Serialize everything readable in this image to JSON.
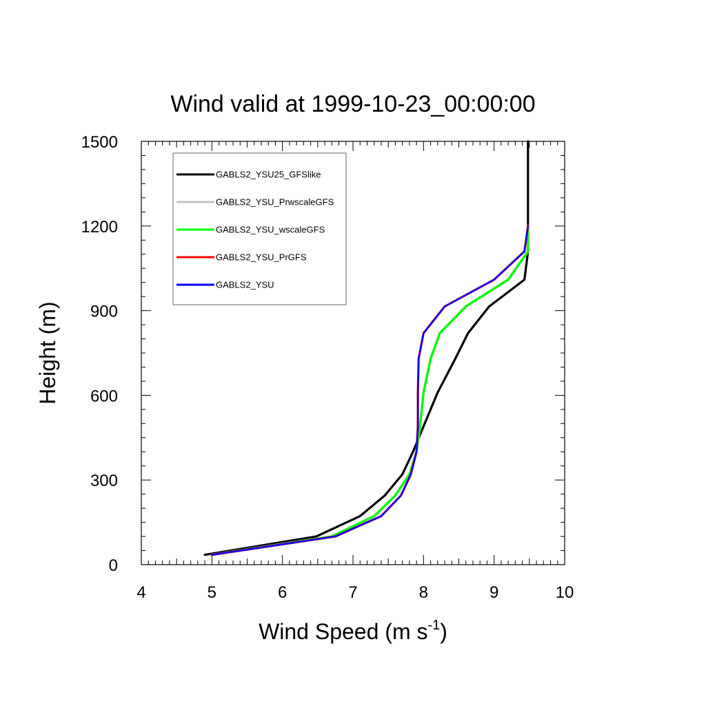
{
  "chart_data": {
    "type": "line",
    "title": "Wind valid at 1999-10-23_00:00:00",
    "xlabel": "Wind Speed (m s",
    "xlabel_sup": "-1",
    "xlabel_end": ")",
    "ylabel": "Height (m)",
    "xlim": [
      4,
      10
    ],
    "ylim": [
      0,
      1500
    ],
    "x_ticks": [
      "4",
      "5",
      "6",
      "7",
      "8",
      "9",
      "10"
    ],
    "y_ticks": [
      "0",
      "300",
      "600",
      "900",
      "1200",
      "1500"
    ],
    "grid": false,
    "legend_position": "top-left",
    "series": [
      {
        "name": "GABLS2_YSU25_GFSlike",
        "color": "#000000",
        "x": [
          4.9,
          6.48,
          7.1,
          7.45,
          7.7,
          7.85,
          8.0,
          8.2,
          8.45,
          8.63,
          8.93,
          9.43,
          9.48,
          9.48,
          9.48
        ],
        "y": [
          35,
          100,
          172,
          245,
          320,
          400,
          490,
          610,
          730,
          820,
          915,
          1010,
          1110,
          1300,
          1500
        ]
      },
      {
        "name": "GABLS2_YSU_PrwscaleGFS",
        "color": "#c0c0c0",
        "x": [
          5.0,
          6.7,
          7.3,
          7.6,
          7.8,
          7.9,
          7.95,
          8.0,
          8.1,
          8.23,
          8.6,
          9.2,
          9.48,
          9.48
        ],
        "y": [
          35,
          100,
          172,
          245,
          320,
          400,
          490,
          610,
          730,
          820,
          915,
          1010,
          1110,
          1200
        ]
      },
      {
        "name": "GABLS2_YSU_wscaleGFS",
        "color": "#00ff00",
        "x": [
          5.0,
          6.7,
          7.3,
          7.6,
          7.8,
          7.9,
          7.95,
          8.0,
          8.1,
          8.23,
          8.6,
          9.2,
          9.48,
          9.48
        ],
        "y": [
          35,
          100,
          172,
          245,
          320,
          400,
          490,
          610,
          730,
          820,
          915,
          1010,
          1110,
          1200
        ]
      },
      {
        "name": "GABLS2_YSU_PrGFS",
        "color": "#ff0000",
        "x": [
          5.0,
          6.75,
          7.4,
          7.68,
          7.82,
          7.9,
          7.92,
          7.92,
          7.93,
          8.0,
          8.3,
          9.0,
          9.43,
          9.48
        ],
        "y": [
          35,
          100,
          172,
          245,
          320,
          400,
          490,
          610,
          730,
          820,
          915,
          1010,
          1110,
          1200
        ]
      },
      {
        "name": "GABLS2_YSU",
        "color": "#0000ff",
        "x": [
          5.0,
          6.75,
          7.4,
          7.68,
          7.82,
          7.9,
          7.92,
          7.92,
          7.93,
          8.0,
          8.3,
          9.0,
          9.43,
          9.48
        ],
        "y": [
          35,
          100,
          172,
          245,
          320,
          400,
          490,
          610,
          730,
          820,
          915,
          1010,
          1110,
          1200
        ]
      }
    ]
  }
}
